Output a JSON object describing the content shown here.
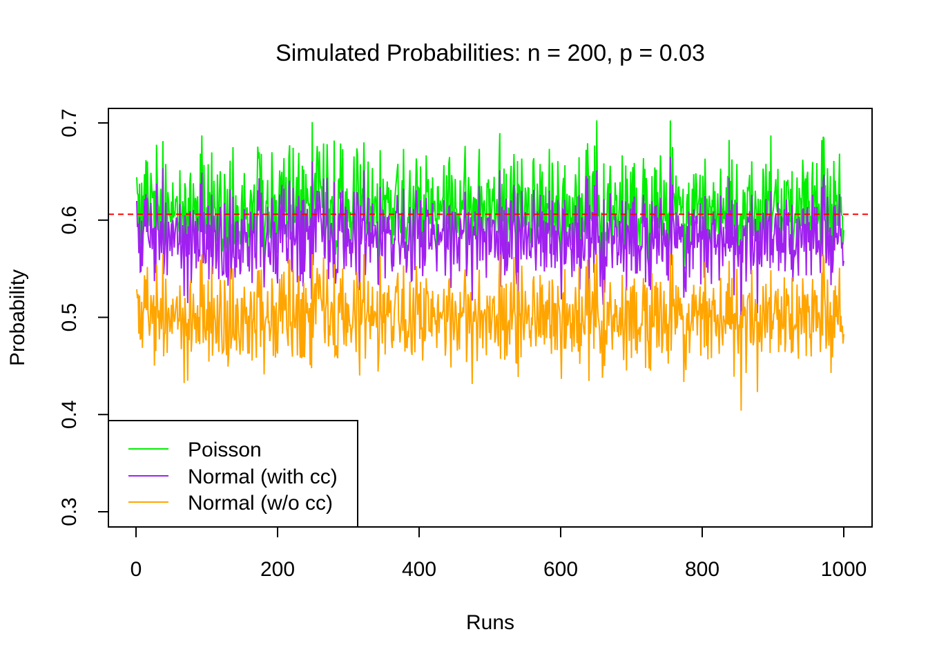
{
  "chart_data": {
    "type": "line",
    "title": "Simulated Probabilities: n = 200, p = 0.03",
    "xlabel": "Runs",
    "ylabel": "Probability",
    "xlim": [
      0,
      1000
    ],
    "ylim": [
      0.3,
      0.7
    ],
    "x_ticks": [
      0,
      200,
      400,
      600,
      800,
      1000
    ],
    "y_ticks": [
      0.3,
      0.4,
      0.5,
      0.6,
      0.7
    ],
    "x_tick_labels": [
      "0",
      "200",
      "400",
      "600",
      "800",
      "1000"
    ],
    "y_tick_labels": [
      "0.3",
      "0.4",
      "0.5",
      "0.6",
      "0.7"
    ],
    "grid": false,
    "legend_position": "bottom-left",
    "reference_line": {
      "y": 0.606,
      "color": "#FF0000",
      "style": "dashed"
    },
    "series": [
      {
        "name": "Poisson",
        "color": "#00EE00",
        "n_points": 1000,
        "mean": 0.612,
        "sd": 0.03,
        "min": 0.49,
        "max": 0.71,
        "x": [
          1,
          1000
        ]
      },
      {
        "name": "Normal (with cc)",
        "color": "#A020F0",
        "n_points": 1000,
        "mean": 0.582,
        "sd": 0.026,
        "min": 0.485,
        "max": 0.665,
        "x": [
          1,
          1000
        ]
      },
      {
        "name": "Normal (w/o cc)",
        "color": "#FFA500",
        "n_points": 1000,
        "mean": 0.5,
        "sd": 0.026,
        "min": 0.404,
        "max": 0.565,
        "x": [
          1,
          1000
        ]
      }
    ]
  }
}
